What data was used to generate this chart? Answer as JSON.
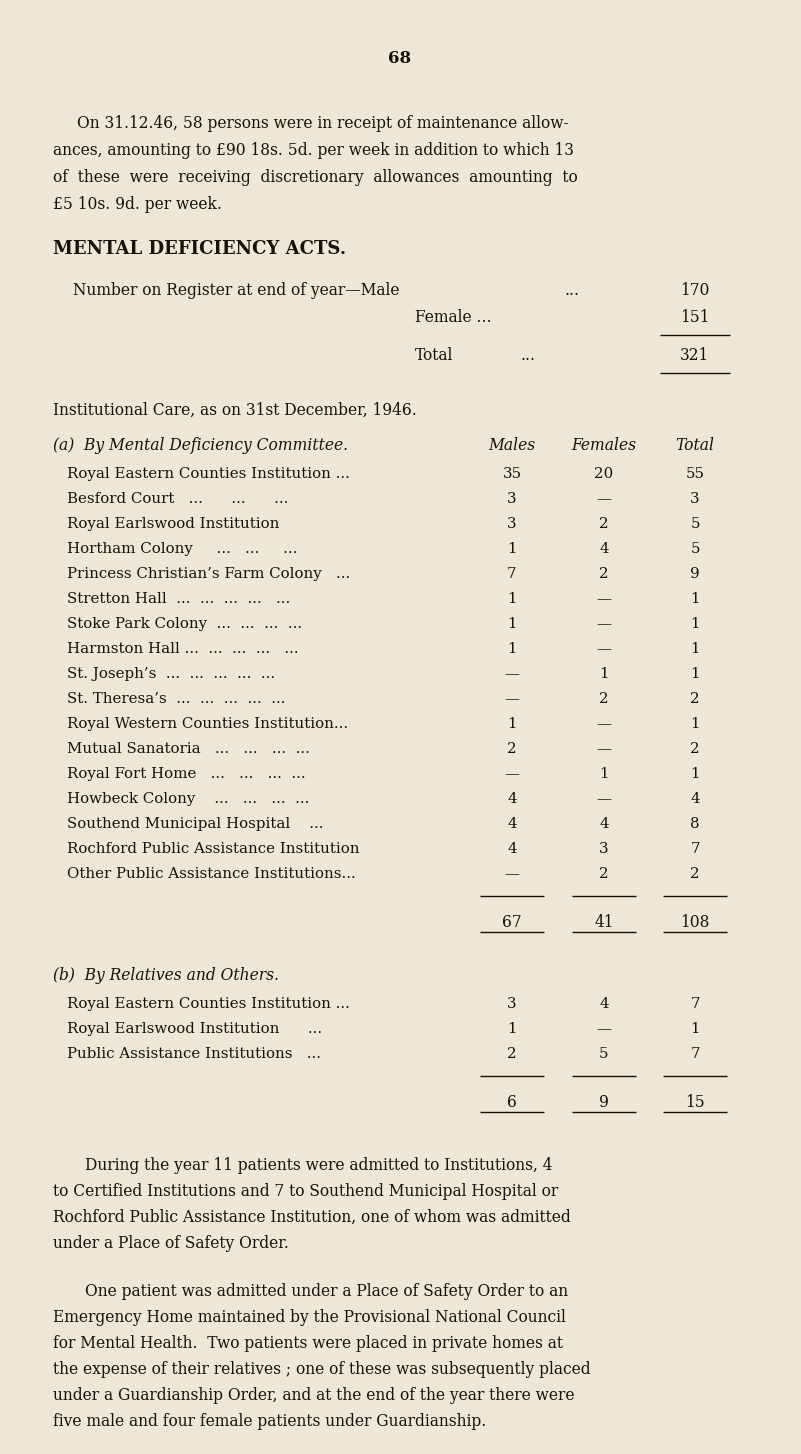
{
  "bg_color": "#ede8d5",
  "text_color": "#1a1008",
  "page_number": "68",
  "intro_lines": [
    "On 31.12.46, 58 persons were in receipt of maintenance allow-",
    "ances, amounting to £90 18s. 5d. per week in addition to which 13",
    "of  these  were  receiving  discretionary  allowances  amounting  to",
    "£5 10s. 9d. per week."
  ],
  "section_title": "MENTAL DEFICIENCY ACTS.",
  "reg_label1": "Number on Register at end of year—Male",
  "reg_dots1": "...",
  "reg_val1": "170",
  "reg_label2": "Female ...",
  "reg_val2": "151",
  "reg_label3": "Total",
  "reg_dots3": "...",
  "reg_val3": "321",
  "inst_title": "Institutional Care, as on 31st December, 1946.",
  "hdr_a": "(a)  By Mental Deficiency Committee.",
  "hdr_males": "Males",
  "hdr_females": "Females",
  "hdr_total": "Total",
  "rows_a": [
    {
      "name": "Royal Eastern Counties Institution ...",
      "m": "35",
      "f": "20",
      "t": "55"
    },
    {
      "name": "Besford Court   ...      ...      ...",
      "m": "3",
      "f": "—",
      "t": "3"
    },
    {
      "name": "Royal Earlswood Institution",
      "m": "3",
      "f": "2",
      "t": "5"
    },
    {
      "name": "Hortham Colony     ...   ...     ...",
      "m": "1",
      "f": "4",
      "t": "5"
    },
    {
      "name": "Princess Christian’s Farm Colony   ...",
      "m": "7",
      "f": "2",
      "t": "9"
    },
    {
      "name": "Stretton Hall  ...  ...  ...  ...   ...",
      "m": "1",
      "f": "—",
      "t": "1"
    },
    {
      "name": "Stoke Park Colony  ...  ...  ...  ...",
      "m": "1",
      "f": "—",
      "t": "1"
    },
    {
      "name": "Harmston Hall ...  ...  ...  ...   ...",
      "m": "1",
      "f": "—",
      "t": "1"
    },
    {
      "name": "St. Joseph’s  ...  ...  ...  ...  ...",
      "m": "—",
      "f": "1",
      "t": "1"
    },
    {
      "name": "St. Theresa’s  ...  ...  ...  ...  ...",
      "m": "—",
      "f": "2",
      "t": "2"
    },
    {
      "name": "Royal Western Counties Institution...",
      "m": "1",
      "f": "—",
      "t": "1"
    },
    {
      "name": "Mutual Sanatoria   ...   ...   ...  ...",
      "m": "2",
      "f": "—",
      "t": "2"
    },
    {
      "name": "Royal Fort Home   ...   ...   ...  ...",
      "m": "—",
      "f": "1",
      "t": "1"
    },
    {
      "name": "Howbeck Colony    ...   ...   ...  ...",
      "m": "4",
      "f": "—",
      "t": "4"
    },
    {
      "name": "Southend Municipal Hospital    ...",
      "m": "4",
      "f": "4",
      "t": "8"
    },
    {
      "name": "Rochford Public Assistance Institution",
      "m": "4",
      "f": "3",
      "t": "7"
    },
    {
      "name": "Other Public Assistance Institutions...",
      "m": "—",
      "f": "2",
      "t": "2"
    }
  ],
  "tot_a": {
    "m": "67",
    "f": "41",
    "t": "108"
  },
  "hdr_b": "(b)  By Relatives and Others.",
  "rows_b": [
    {
      "name": "Royal Eastern Counties Institution ...",
      "m": "3",
      "f": "4",
      "t": "7"
    },
    {
      "name": "Royal Earlswood Institution      ...",
      "m": "1",
      "f": "—",
      "t": "1"
    },
    {
      "name": "Public Assistance Institutions   ...",
      "m": "2",
      "f": "5",
      "t": "7"
    }
  ],
  "tot_b": {
    "m": "6",
    "f": "9",
    "t": "15"
  },
  "footer1": [
    "During the year 11 patients were admitted to Institutions, 4",
    "to Certified Institutions and 7 to Southend Municipal Hospital or",
    "Rochford Public Assistance Institution, one of whom was admitted",
    "under a Place of Safety Order."
  ],
  "footer2": [
    "One patient was admitted under a Place of Safety Order to an",
    "Emergency Home maintained by the Provisional National Council",
    "for Mental Health.  Two patients were placed in private homes at",
    "the expense of their relatives ; one of these was subsequently placed",
    "under a Guardianship Order, and at the end of the year there were",
    "five male and four female patients under Guardianship."
  ]
}
